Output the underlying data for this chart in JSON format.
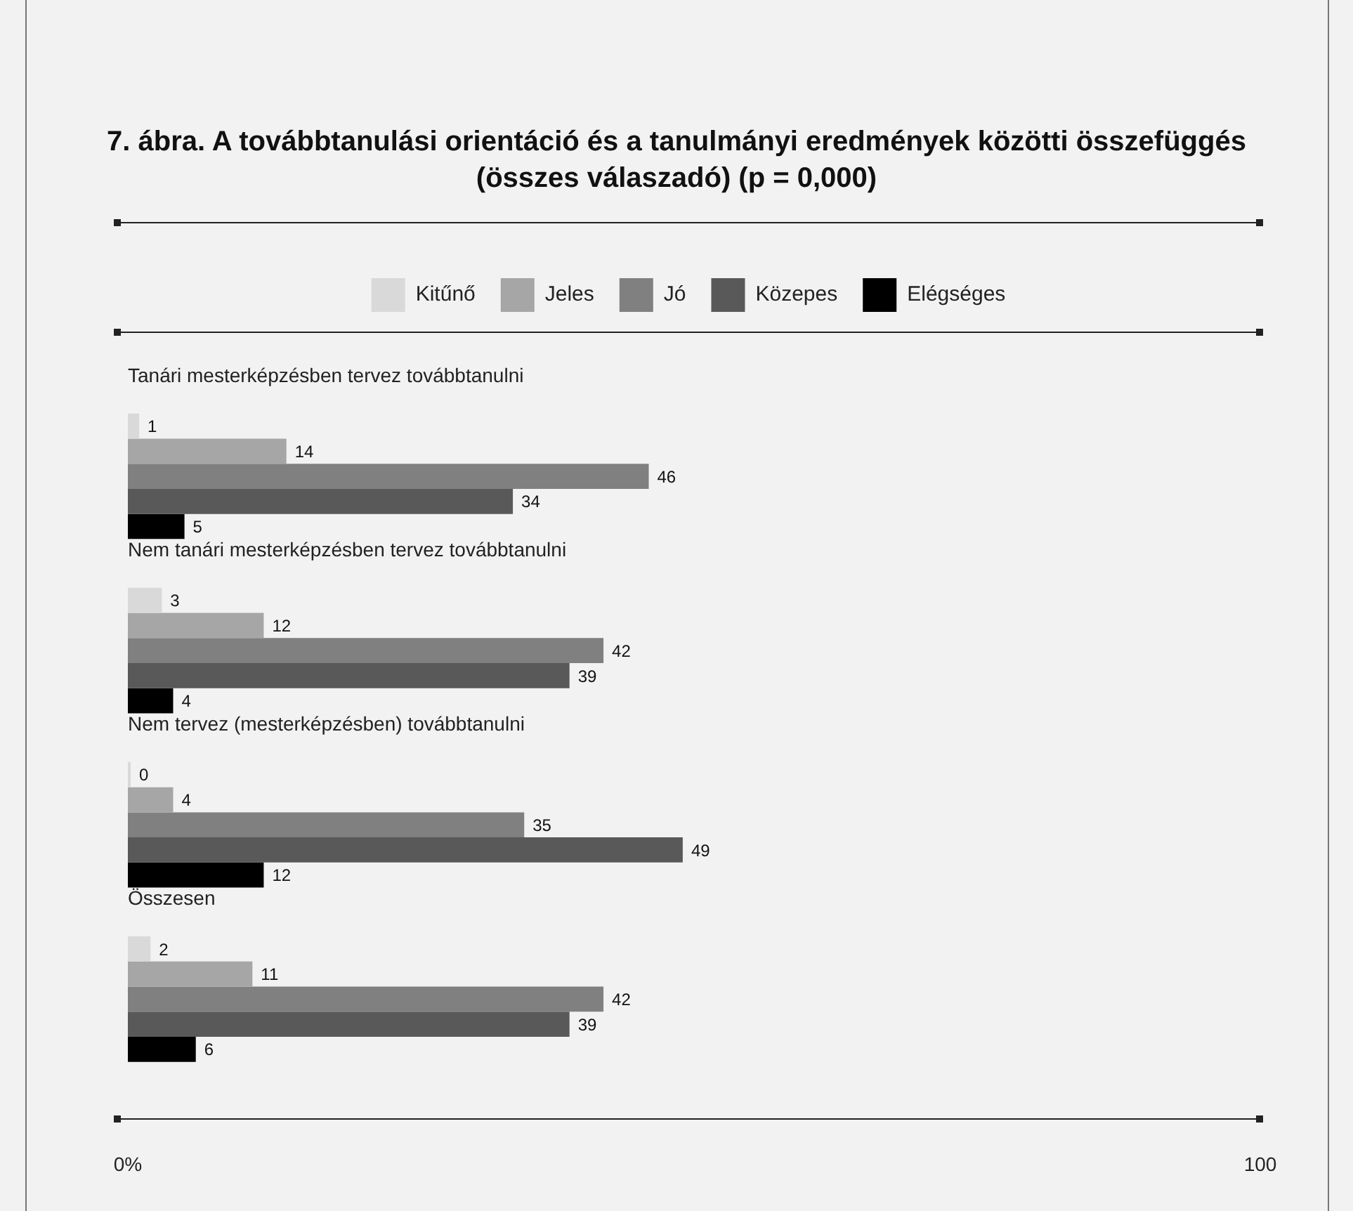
{
  "chart_data": {
    "type": "bar",
    "orientation": "horizontal",
    "title": "7. ábra. A továbbtanulási orientáció és a tanulmányi eredmények közötti összefüggés (összes válaszadó) (p = 0,000)",
    "categories": [
      "Tanári mesterképzésben tervez továbbtanulni",
      "Nem tanári mesterképzésben tervez továbbtanulni",
      "Nem tervez (mesterképzésben) továbbtanulni",
      "Összesen"
    ],
    "series": [
      {
        "name": "Kitűnő",
        "color": "#d9d9d9",
        "values": [
          1,
          3,
          0,
          2
        ]
      },
      {
        "name": "Jeles",
        "color": "#a6a6a6",
        "values": [
          14,
          12,
          4,
          11
        ]
      },
      {
        "name": "Jó",
        "color": "#808080",
        "values": [
          46,
          42,
          35,
          42
        ]
      },
      {
        "name": "Közepes",
        "color": "#595959",
        "values": [
          34,
          39,
          49,
          39
        ]
      },
      {
        "name": "Elégséges",
        "color": "#000000",
        "values": [
          5,
          4,
          12,
          6
        ]
      }
    ],
    "xlim": [
      0,
      100
    ],
    "xticks": [
      {
        "value": 0,
        "label": "0%"
      },
      100
    ],
    "data_labels": true,
    "legend": "top",
    "grid": false
  }
}
